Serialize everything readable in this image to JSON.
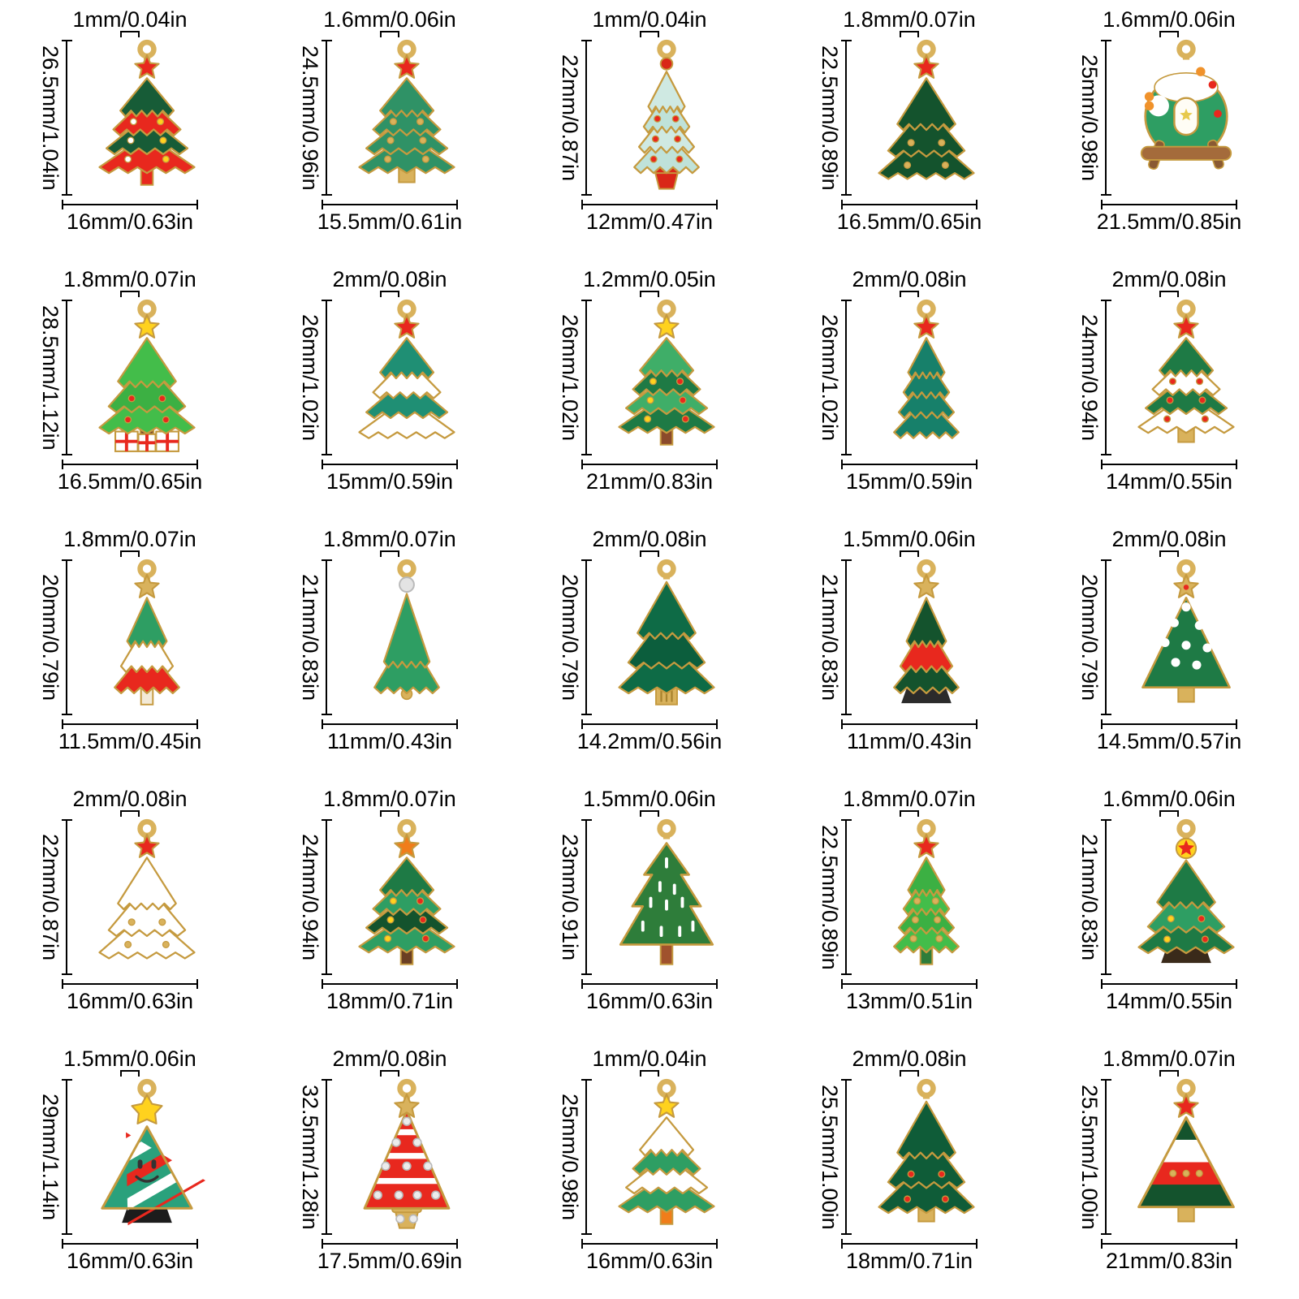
{
  "layout": {
    "rows": 5,
    "cols": 5
  },
  "gold_outline": "#c59a3f",
  "gold_fill": "#d9b25c",
  "charms": [
    {
      "id": "r1c1",
      "loop_size": "1mm/0.04in",
      "height": "26.5mm/1.04in",
      "width": "16mm/0.63in",
      "description": "red and green patchwork tree with red star and string lights",
      "art": {
        "topper": "star",
        "topper_color": "#e8281e",
        "body": "tiered",
        "body_colors": [
          "#175c37",
          "#e8281e",
          "#175c37",
          "#e8281e"
        ],
        "dots": [
          "#ffffff",
          "#ffd21e"
        ],
        "trunk": "trunk",
        "trunk_color": "#e8281e"
      }
    },
    {
      "id": "r1c2",
      "loop_size": "1.6mm/0.06in",
      "height": "24.5mm/0.96in",
      "width": "15.5mm/0.61in",
      "description": "green scalloped tree with large red star and gold bead ornaments",
      "art": {
        "topper": "star",
        "topper_color": "#e8281e",
        "body": "tiered",
        "body_colors": [
          "#2f9266",
          "#2f9266",
          "#2f9266",
          "#2f9266"
        ],
        "dots": [
          "#d9b25c"
        ],
        "trunk": "gold",
        "trunk_color": "#d9b25c"
      }
    },
    {
      "id": "r1c3",
      "loop_size": "1mm/0.04in",
      "height": "22mm/0.87in",
      "width": "12mm/0.47in",
      "description": "slim pale teal fan tree with red ornaments in a red pot",
      "art": {
        "topper": "ball",
        "topper_color": "#d92718",
        "body": "tiered",
        "body_colors": [
          "#cfe9e2",
          "#bfe2d9",
          "#cfe9e2",
          "#bfe2d9"
        ],
        "dots": [
          "#e8281e"
        ],
        "trunk": "pot",
        "trunk_color": "#d92718",
        "narrow": true
      }
    },
    {
      "id": "r1c4",
      "loop_size": "1.8mm/0.07in",
      "height": "22.5mm/0.89in",
      "width": "16.5mm/0.65in",
      "description": "dark green beaded tree with red star",
      "art": {
        "topper": "star",
        "topper_color": "#e8281e",
        "body": "tiered",
        "body_colors": [
          "#14532d",
          "#14532d",
          "#14532d"
        ],
        "dots": [
          "#d9b25c"
        ],
        "trunk": "none"
      }
    },
    {
      "id": "r1c5",
      "loop_size": "1.6mm/0.06in",
      "height": "25mm/0.98in",
      "width": "21.5mm/0.85in",
      "description": "snowy tree cottage charm with white door, gold star, log fence and orange bow",
      "art": {
        "topper": "none",
        "body": "log",
        "body_colors": [
          "#2e9e63",
          "#ffffff",
          "#a46b3b",
          "#f0922b",
          "#e8281e"
        ]
      }
    },
    {
      "id": "r2c1",
      "loop_size": "1.8mm/0.07in",
      "height": "28.5mm/1.12in",
      "width": "16.5mm/0.65in",
      "description": "bright green tree with yellow star, red ornaments and gift boxes at the base",
      "art": {
        "topper": "star",
        "topper_color": "#ffd21e",
        "body": "tiered",
        "body_colors": [
          "#43bd4a",
          "#3cb043",
          "#43bd4a"
        ],
        "dots": [
          "#e8281e"
        ],
        "trunk": "gifts",
        "trunk_color": "#7a4a2b"
      }
    },
    {
      "id": "r2c2",
      "loop_size": "2mm/0.08in",
      "height": "26mm/1.02in",
      "width": "15mm/0.59in",
      "description": "teal tree draped with white snow and topped with a red star",
      "art": {
        "topper": "star",
        "topper_color": "#e8281e",
        "body": "tiered",
        "body_colors": [
          "#1f8f74",
          "#ffffff",
          "#1f8f74",
          "#ffffff"
        ],
        "trunk": "none"
      }
    },
    {
      "id": "r2c3",
      "loop_size": "1.2mm/0.05in",
      "height": "26mm/1.02in",
      "width": "21mm/0.83in",
      "description": "two-tone green layered tree with yellow star, star ornaments and brown trunk",
      "art": {
        "topper": "star",
        "topper_color": "#ffd21e",
        "body": "tiered",
        "body_colors": [
          "#3fae68",
          "#1e7a45",
          "#3fae68",
          "#1e7a45"
        ],
        "dots": [
          "#ffd21e",
          "#e8281e"
        ],
        "trunk": "trunk",
        "trunk_color": "#8b4a2b"
      }
    },
    {
      "id": "r2c4",
      "loop_size": "2mm/0.08in",
      "height": "26mm/1.02in",
      "width": "15mm/0.59in",
      "description": "slim dark teal tree with gold ribbon and red star",
      "art": {
        "topper": "star",
        "topper_color": "#e8281e",
        "body": "tiered",
        "body_colors": [
          "#17806a",
          "#17806a",
          "#17806a",
          "#17806a"
        ],
        "trunk": "none",
        "narrow": true
      }
    },
    {
      "id": "r2c5",
      "loop_size": "2mm/0.08in",
      "height": "24mm/0.94in",
      "width": "14mm/0.55in",
      "description": "green tree with white snow bands, red ornaments and red star",
      "art": {
        "topper": "star",
        "topper_color": "#e8281e",
        "body": "tiered",
        "body_colors": [
          "#1e7a45",
          "#ffffff",
          "#1e7a45",
          "#ffffff"
        ],
        "dots": [
          "#e8281e"
        ],
        "trunk": "gold",
        "trunk_color": "#d9b25c"
      }
    },
    {
      "id": "r3c1",
      "loop_size": "1.8mm/0.07in",
      "height": "20mm/0.79in",
      "width": "11.5mm/0.45in",
      "description": "small green, white and red tiered tree with gold star",
      "art": {
        "topper": "star",
        "topper_color": "#d9b25c",
        "body": "tiered",
        "body_colors": [
          "#2e9e63",
          "#ffffff",
          "#e8281e"
        ],
        "trunk": "trunk",
        "trunk_color": "#f3ead8",
        "narrow": true
      }
    },
    {
      "id": "r3c2",
      "loop_size": "1.8mm/0.07in",
      "height": "21mm/0.83in",
      "width": "11mm/0.43in",
      "description": "green two-tier tree with crystal rhinestone topper and gold ball base",
      "art": {
        "topper": "gem",
        "topper_color": "#e3e3e3",
        "body": "tiered",
        "body_colors": [
          "#2e9e63",
          "#2e9e63"
        ],
        "trunk": "ball",
        "trunk_color": "#d9b25c",
        "narrow": true
      }
    },
    {
      "id": "r3c3",
      "loop_size": "2mm/0.08in",
      "height": "20mm/0.79in",
      "width": "14.2mm/0.56in",
      "description": "emerald layered tree with gold tassel trunk",
      "art": {
        "topper": "none",
        "body": "tiered",
        "body_colors": [
          "#0e6b46",
          "#0c5e3d",
          "#0e6b46"
        ],
        "trunk": "tassel",
        "trunk_color": "#d9b25c"
      }
    },
    {
      "id": "r3c4",
      "loop_size": "1.5mm/0.06in",
      "height": "21mm/0.83in",
      "width": "11mm/0.43in",
      "description": "green-red-green tiered tree with gold star and dark base",
      "art": {
        "topper": "star",
        "topper_color": "#d9b25c",
        "body": "tiered",
        "body_colors": [
          "#14532d",
          "#e8281e",
          "#14532d"
        ],
        "trunk": "black",
        "trunk_color": "#2b2b2b",
        "narrow": true
      }
    },
    {
      "id": "r3c5",
      "loop_size": "2mm/0.08in",
      "height": "20mm/0.79in",
      "width": "14.5mm/0.57in",
      "description": "green triangle tree with white polka dots, gold trunk and gold star with red center",
      "art": {
        "topper": "star",
        "topper_color": "#d9b25c",
        "topper_center": "#e8281e",
        "body": "triangle",
        "body_colors": [
          "#1e7a45"
        ],
        "white_dots": true,
        "trunk": "gold",
        "trunk_color": "#d9b25c"
      }
    },
    {
      "id": "r4c1",
      "loop_size": "2mm/0.08in",
      "height": "22mm/0.87in",
      "width": "16mm/0.63in",
      "description": "white snow tree with red star and gold bead garlands",
      "art": {
        "topper": "star",
        "topper_color": "#e8281e",
        "body": "tiered",
        "body_colors": [
          "#ffffff",
          "#ffffff",
          "#ffffff"
        ],
        "dots": [
          "#d9b25c"
        ],
        "trunk": "none"
      }
    },
    {
      "id": "r4c2",
      "loop_size": "1.8mm/0.07in",
      "height": "24mm/0.94in",
      "width": "18mm/0.71in",
      "description": "dark green wavy tree with orange star, yellow stars, red ornaments and brown trunk",
      "art": {
        "topper": "star",
        "topper_color": "#f07d1a",
        "body": "tiered",
        "body_colors": [
          "#1e7a45",
          "#2e9e63",
          "#14532d",
          "#2e9e63"
        ],
        "dots": [
          "#ffd21e",
          "#e8281e"
        ],
        "trunk": "trunk",
        "trunk_color": "#6b3f23"
      }
    },
    {
      "id": "r4c3",
      "loop_size": "1.5mm/0.06in",
      "height": "23mm/0.91in",
      "width": "16mm/0.63in",
      "description": "plain green pine tree with white needle marks and brown trunk",
      "art": {
        "topper": "none",
        "body": "pine",
        "body_colors": [
          "#2e7d3a"
        ],
        "trunk": "trunk",
        "trunk_color": "#a0522d"
      }
    },
    {
      "id": "r4c4",
      "loop_size": "1.8mm/0.07in",
      "height": "22.5mm/0.89in",
      "width": "13mm/0.51in",
      "description": "bright green tiered tree with gold dots and small red star",
      "art": {
        "topper": "star",
        "topper_color": "#e8281e",
        "body": "tiered",
        "body_colors": [
          "#3cb043",
          "#43bd4a",
          "#3cb043",
          "#43bd4a"
        ],
        "dots": [
          "#d9b25c"
        ],
        "trunk": "trunk",
        "trunk_color": "#2e7d3a",
        "narrow": true
      }
    },
    {
      "id": "r4c5",
      "loop_size": "1.6mm/0.06in",
      "height": "21mm/0.83in",
      "width": "14mm/0.55in",
      "description": "green tree with yellow ball and red star topper, yellow and red ornaments",
      "art": {
        "topper": "ballstar",
        "topper_color": "#e8281e",
        "topper_color2": "#ffd21e",
        "body": "tiered",
        "body_colors": [
          "#1e7a45",
          "#2e9e63",
          "#1e7a45"
        ],
        "dots": [
          "#ffd21e",
          "#e8281e"
        ],
        "trunk": "black",
        "trunk_color": "#3a2a1a"
      }
    },
    {
      "id": "r5c1",
      "loop_size": "1.5mm/0.06in",
      "height": "29mm/1.14in",
      "width": "16mm/0.63in",
      "description": "candy-stripe teal tree with smiley face, big yellow star and black base",
      "art": {
        "topper": "flower",
        "topper_color": "#ffd21e",
        "body": "striped",
        "body_colors": [
          "#2aa17c"
        ],
        "stripe_colors": [
          "#e8281e",
          "#ffffff"
        ],
        "face": true,
        "trunk": "black",
        "trunk_color": "#1c1c1c"
      }
    },
    {
      "id": "r5c2",
      "loop_size": "2mm/0.08in",
      "height": "32.5mm/1.28in",
      "width": "17.5mm/0.69in",
      "description": "red and white openwork tree with rhinestones, gold star and rhinestone pot",
      "art": {
        "topper": "star",
        "topper_color": "#d9b25c",
        "body": "gemtri",
        "body_colors": [
          "#e8281e"
        ],
        "trunk": "pot",
        "trunk_color": "#d9b25c"
      }
    },
    {
      "id": "r5c3",
      "loop_size": "1mm/0.04in",
      "height": "25mm/0.98in",
      "width": "16mm/0.63in",
      "description": "white and green zigzag tree with yellow star and orange trunk",
      "art": {
        "topper": "star",
        "topper_color": "#ffd21e",
        "body": "tiered",
        "body_colors": [
          "#ffffff",
          "#2e9e63",
          "#ffffff",
          "#2e9e63"
        ],
        "trunk": "trunk",
        "trunk_color": "#f07d1a"
      }
    },
    {
      "id": "r5c4",
      "loop_size": "2mm/0.08in",
      "height": "25.5mm/1.00in",
      "width": "18mm/0.71in",
      "description": "dark green tiered tree studded with red baubles and gold trunk",
      "art": {
        "topper": "none",
        "body": "tiered",
        "body_colors": [
          "#0f5c38",
          "#0f5c38",
          "#0f5c38"
        ],
        "dots": [
          "#e8281e"
        ],
        "trunk": "gold",
        "trunk_color": "#d9b25c"
      }
    },
    {
      "id": "r5c5",
      "loop_size": "1.8mm/0.07in",
      "height": "25.5mm/1.00in",
      "width": "21mm/0.83in",
      "description": "swooping tree with green, white and red bands, gold dots and red star",
      "art": {
        "topper": "star",
        "topper_color": "#e8281e",
        "body": "banded",
        "body_colors": [
          "#14532d",
          "#ffffff",
          "#e8281e",
          "#14532d"
        ],
        "dots": [
          "#d9b25c"
        ],
        "trunk": "gold",
        "trunk_color": "#d9b25c"
      }
    }
  ]
}
